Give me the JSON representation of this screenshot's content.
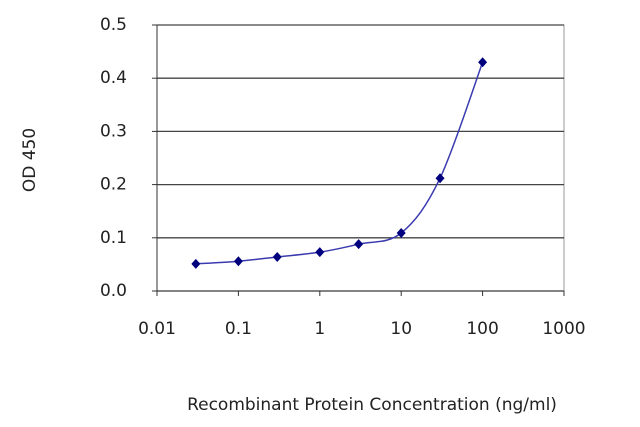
{
  "chart_data": {
    "type": "line",
    "x_label": "Recombinant Protein Concentration (ng/ml)",
    "y_label": "OD 450",
    "x": [
      0.03,
      0.1,
      0.3,
      1,
      3,
      10,
      30,
      100
    ],
    "series": [
      {
        "color": "#00007f",
        "values": [
          0.051,
          0.056,
          0.064,
          0.073,
          0.088,
          0.109,
          0.212,
          0.43
        ]
      }
    ],
    "xscale": "log",
    "xlim": [
      0.01,
      1000
    ],
    "xticks": [
      0.01,
      0.1,
      1,
      10,
      100,
      1000
    ],
    "ylim": [
      0,
      0.5
    ],
    "yticks": [
      {
        "value": 0,
        "label": "0.0"
      },
      0.1,
      0.2,
      0.3,
      0.4,
      0.5
    ],
    "grid": true
  }
}
